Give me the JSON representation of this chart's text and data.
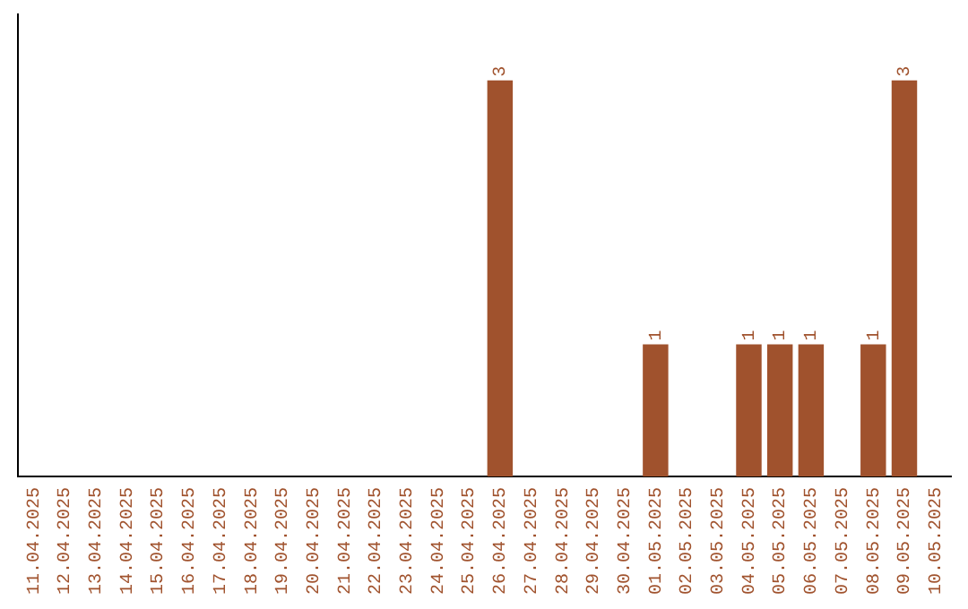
{
  "chart_data": {
    "type": "bar",
    "categories": [
      "11.04.2025",
      "12.04.2025",
      "13.04.2025",
      "14.04.2025",
      "15.04.2025",
      "16.04.2025",
      "17.04.2025",
      "18.04.2025",
      "19.04.2025",
      "20.04.2025",
      "21.04.2025",
      "22.04.2025",
      "23.04.2025",
      "24.04.2025",
      "25.04.2025",
      "26.04.2025",
      "27.04.2025",
      "28.04.2025",
      "29.04.2025",
      "30.04.2025",
      "01.05.2025",
      "02.05.2025",
      "03.05.2025",
      "04.05.2025",
      "05.05.2025",
      "06.05.2025",
      "07.05.2025",
      "08.05.2025",
      "09.05.2025",
      "10.05.2025"
    ],
    "values": [
      null,
      null,
      null,
      null,
      null,
      null,
      null,
      null,
      null,
      null,
      null,
      null,
      null,
      null,
      null,
      3,
      null,
      null,
      null,
      null,
      1,
      null,
      null,
      1,
      1,
      1,
      null,
      1,
      3,
      null
    ],
    "value_labels": [
      null,
      null,
      null,
      null,
      null,
      null,
      null,
      null,
      null,
      null,
      null,
      null,
      null,
      null,
      null,
      "3",
      null,
      null,
      null,
      null,
      "1",
      null,
      null,
      "1",
      "1",
      "1",
      null,
      "1",
      "3",
      null
    ],
    "color": "#a0522d",
    "tick_labels": "x",
    "grid": false,
    "legend": false
  }
}
